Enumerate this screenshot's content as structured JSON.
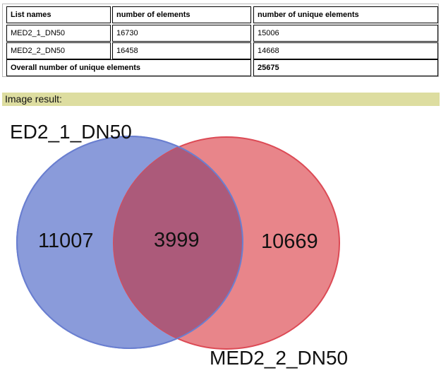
{
  "table": {
    "headers": [
      "List names",
      "number of elements",
      "number of unique elements"
    ],
    "rows": [
      [
        "MED2_1_DN50",
        "16730",
        "15006"
      ],
      [
        "MED2_2_DN50",
        "16458",
        "14668"
      ]
    ],
    "overall": {
      "label": "Overall number of unique elements",
      "value": "25675"
    }
  },
  "result_label": "Image result:",
  "venn": {
    "set_a": {
      "name": "MED2_1_DN50",
      "visible_name": "ED2_1_DN50",
      "color": "#6a7fd0",
      "fill": "#8a9bda"
    },
    "set_b": {
      "name": "MED2_2_DN50",
      "color": "#dc4a55",
      "fill": "#e8858a"
    },
    "only_a": "11007",
    "intersection": "3999",
    "only_b": "10669",
    "overlap_color": "#ac5a7a"
  }
}
